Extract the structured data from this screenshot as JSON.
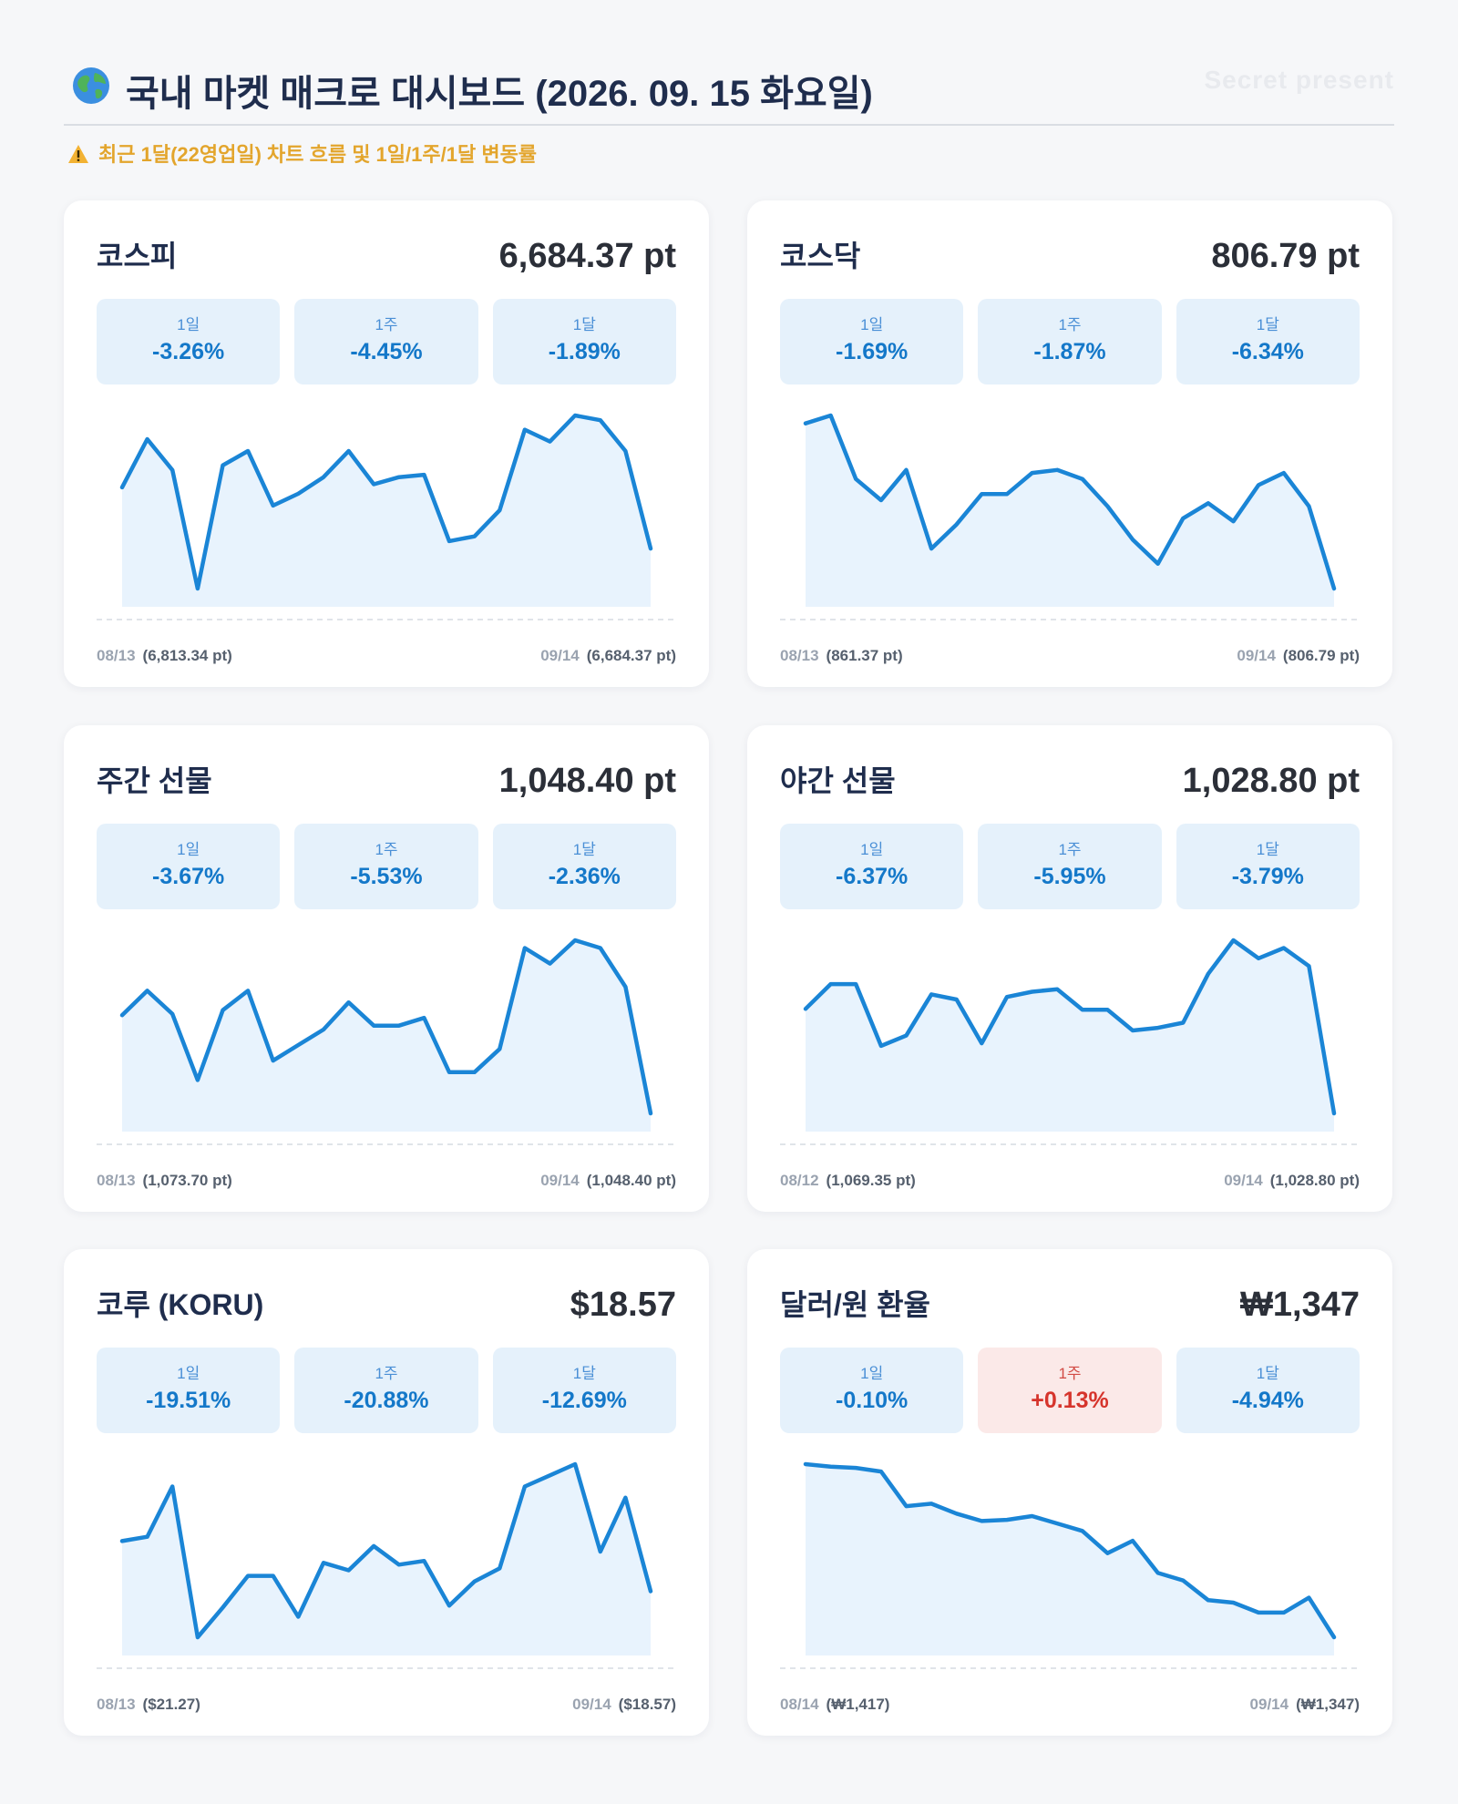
{
  "header": {
    "title": "국내 마켓 매크로 대시보드 (2026. 09. 15 화요일)",
    "watermark": "Secret present",
    "subtitle": "최근 1달(22영업일) 차트 흐름 및 1일/1주/1달 변동률",
    "icons": [
      "globe-icon",
      "warning-icon"
    ]
  },
  "colors": {
    "line": "#1a85d6",
    "fill": "#e8f3fd",
    "down": "#1478c9",
    "up": "#d6342c"
  },
  "cards": [
    {
      "name": "코스피",
      "value": "6,684.37 pt",
      "changes": [
        {
          "label": "1일",
          "value": "-3.26%",
          "dir": "down"
        },
        {
          "label": "1주",
          "value": "-4.45%",
          "dir": "down"
        },
        {
          "label": "1달",
          "value": "-1.89%",
          "dir": "down"
        }
      ],
      "start_date": "08/13",
      "start_value": "(6,813.34 pt)",
      "end_date": "09/14",
      "end_value": "(6,684.37 pt)"
    },
    {
      "name": "코스닥",
      "value": "806.79 pt",
      "changes": [
        {
          "label": "1일",
          "value": "-1.69%",
          "dir": "down"
        },
        {
          "label": "1주",
          "value": "-1.87%",
          "dir": "down"
        },
        {
          "label": "1달",
          "value": "-6.34%",
          "dir": "down"
        }
      ],
      "start_date": "08/13",
      "start_value": "(861.37 pt)",
      "end_date": "09/14",
      "end_value": "(806.79 pt)"
    },
    {
      "name": "주간 선물",
      "value": "1,048.40 pt",
      "changes": [
        {
          "label": "1일",
          "value": "-3.67%",
          "dir": "down"
        },
        {
          "label": "1주",
          "value": "-5.53%",
          "dir": "down"
        },
        {
          "label": "1달",
          "value": "-2.36%",
          "dir": "down"
        }
      ],
      "start_date": "08/13",
      "start_value": "(1,073.70 pt)",
      "end_date": "09/14",
      "end_value": "(1,048.40 pt)"
    },
    {
      "name": "야간 선물",
      "value": "1,028.80 pt",
      "changes": [
        {
          "label": "1일",
          "value": "-6.37%",
          "dir": "down"
        },
        {
          "label": "1주",
          "value": "-5.95%",
          "dir": "down"
        },
        {
          "label": "1달",
          "value": "-3.79%",
          "dir": "down"
        }
      ],
      "start_date": "08/12",
      "start_value": "(1,069.35 pt)",
      "end_date": "09/14",
      "end_value": "(1,028.80 pt)"
    },
    {
      "name": "코루 (KORU)",
      "value": "$18.57",
      "changes": [
        {
          "label": "1일",
          "value": "-19.51%",
          "dir": "down"
        },
        {
          "label": "1주",
          "value": "-20.88%",
          "dir": "down"
        },
        {
          "label": "1달",
          "value": "-12.69%",
          "dir": "down"
        }
      ],
      "start_date": "08/13",
      "start_value": "($21.27)",
      "end_date": "09/14",
      "end_value": "($18.57)"
    },
    {
      "name": "달러/원 환율",
      "value": "₩1,347",
      "changes": [
        {
          "label": "1일",
          "value": "-0.10%",
          "dir": "down"
        },
        {
          "label": "1주",
          "value": "+0.13%",
          "dir": "up"
        },
        {
          "label": "1달",
          "value": "-4.94%",
          "dir": "down"
        }
      ],
      "start_date": "08/14",
      "start_value": "(₩1,417)",
      "end_date": "09/14",
      "end_value": "(₩1,347)"
    }
  ],
  "chart_data": [
    {
      "type": "area",
      "series": [
        {
          "values": [
            6813.34,
            6915,
            6850,
            6600,
            6860,
            6890,
            6775,
            6800,
            6835,
            6890,
            6820,
            6835,
            6840,
            6700,
            6710,
            6765,
            6935,
            6910,
            6965,
            6955,
            6890,
            6684.37
          ]
        }
      ]
    },
    {
      "type": "area",
      "series": [
        {
          "values": [
            861.37,
            864,
            843,
            836,
            846,
            820,
            828,
            838,
            838,
            845,
            846,
            843,
            834,
            823,
            815,
            830,
            835,
            829,
            841,
            845,
            834,
            806.79
          ]
        }
      ]
    },
    {
      "type": "area",
      "series": [
        {
          "values": [
            1073.7,
            1080,
            1074,
            1057,
            1075,
            1080,
            1062,
            1066,
            1070,
            1077,
            1071,
            1071,
            1073,
            1059,
            1059,
            1065,
            1091,
            1087,
            1093,
            1091,
            1081,
            1048.4
          ]
        }
      ]
    },
    {
      "type": "area",
      "series": [
        {
          "values": [
            1069.35,
            1079,
            1079,
            1055,
            1059,
            1075,
            1073,
            1056,
            1074,
            1076,
            1077,
            1069,
            1069,
            1061,
            1062,
            1064,
            1083,
            1096,
            1089,
            1093,
            1086,
            1028.8
          ]
        }
      ]
    },
    {
      "type": "area",
      "series": [
        {
          "values": [
            21.27,
            21.5,
            24.2,
            16.1,
            17.7,
            19.4,
            19.4,
            17.2,
            20.1,
            19.7,
            21.0,
            20.0,
            20.2,
            17.8,
            19.1,
            19.8,
            24.2,
            24.8,
            25.4,
            20.7,
            23.6,
            18.57
          ]
        }
      ]
    },
    {
      "type": "area",
      "series": [
        {
          "values": [
            1417,
            1416,
            1415.5,
            1414,
            1400,
            1401,
            1397,
            1394,
            1394.5,
            1396,
            1393,
            1390,
            1381,
            1386,
            1373,
            1370,
            1362,
            1361,
            1357,
            1357,
            1363,
            1347
          ]
        }
      ]
    }
  ]
}
